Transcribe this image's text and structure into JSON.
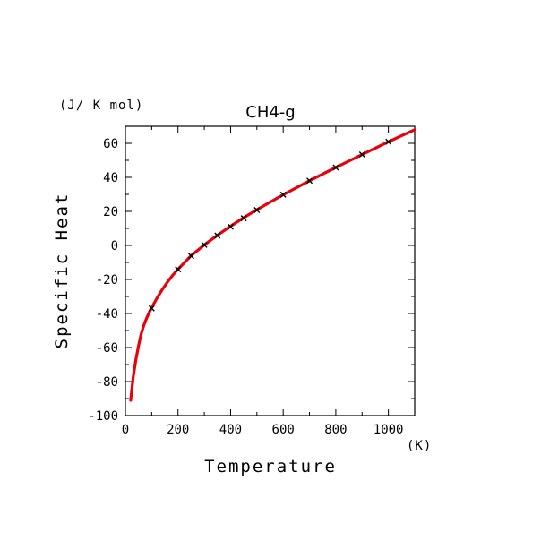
{
  "chart_data": {
    "type": "line",
    "title": "CH4-g",
    "xlabel": "Temperature",
    "ylabel": "Specific Heat",
    "x_unit": "(K)",
    "y_unit": "(J/ K mol)",
    "xlim": [
      0,
      1100
    ],
    "ylim": [
      -100,
      70
    ],
    "x_ticks": [
      0,
      200,
      400,
      600,
      800,
      1000
    ],
    "y_ticks": [
      -100,
      -80,
      -60,
      -40,
      -20,
      0,
      20,
      40,
      60
    ],
    "grid": false,
    "colors": {
      "curve": "#e8000b",
      "points": "#000000"
    },
    "series": [
      {
        "type": "line",
        "x": [
          20,
          30,
          40,
          50,
          60,
          70,
          80,
          90,
          100,
          120,
          140,
          160,
          180,
          200,
          250,
          300,
          350,
          400,
          450,
          500,
          600,
          700,
          800,
          900,
          1000,
          1100
        ],
        "y": [
          -91,
          -77,
          -67,
          -59,
          -52,
          -47,
          -43,
          -39.5,
          -36.5,
          -31,
          -26,
          -21.5,
          -17.5,
          -14,
          -6,
          0.3,
          6,
          11.3,
          16.3,
          21,
          29.8,
          38,
          45.8,
          53.4,
          60.9,
          68
        ]
      },
      {
        "type": "scatter",
        "marker": "x",
        "x": [
          100,
          200,
          250,
          300,
          350,
          400,
          450,
          500,
          600,
          700,
          800,
          900,
          1000
        ],
        "y": [
          -37,
          -14,
          -6.2,
          0.3,
          5.8,
          11,
          16,
          20.8,
          29.8,
          38,
          45.8,
          53.4,
          60.9
        ]
      }
    ]
  }
}
